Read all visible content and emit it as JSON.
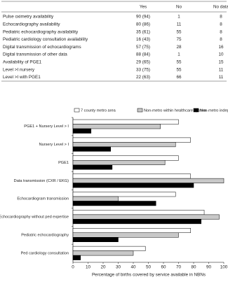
{
  "table": {
    "header": [
      "Yes",
      "No",
      "No data"
    ],
    "rows": [
      [
        "Pulse oximetry availability",
        "90 (94)",
        "1",
        "8"
      ],
      [
        "Echocardiography availability",
        "80 (86)",
        "11",
        "8"
      ],
      [
        "Pediatric echocardiography availability",
        "35 (61)",
        "55",
        "8"
      ],
      [
        "Pediatric cardiology consultation availability",
        "16 (43)",
        "75",
        "8"
      ],
      [
        "Digital transmission of echocardiograms",
        "57 (75)",
        "28",
        "16"
      ],
      [
        "Digital transmission of other data",
        "88 (84)",
        "1",
        "10"
      ],
      [
        "Availability of PGE1",
        "29 (65)",
        "55",
        "15"
      ],
      [
        "Level >I nursery",
        "33 (75)",
        "55",
        "11"
      ],
      [
        "Level >I with PGE1",
        "22 (63)",
        "66",
        "11"
      ]
    ]
  },
  "chart_data": {
    "type": "barh",
    "xlabel": "Percentage of births covered by service available in NBNs",
    "categories": [
      "PGE1 + Nursery Level > I",
      "Nursery Level > I",
      "PGE1",
      "Data transmission (CXR / EKG)",
      "Echocardiogram transmission",
      "Echocardiography without ped expertise",
      "Pediatric echocardiography",
      "Ped cardiology consultation"
    ],
    "series": [
      {
        "name": "7 county metro area",
        "color": "#ffffff",
        "values": [
          70,
          78,
          70,
          78,
          68,
          87,
          78,
          48
        ]
      },
      {
        "name": "Non-metro within healthcare system",
        "color": "#c8c8c8",
        "values": [
          58,
          68,
          61,
          100,
          30,
          97,
          70,
          40
        ]
      },
      {
        "name": "Non-metro independent",
        "color": "#000000",
        "values": [
          12,
          25,
          26,
          80,
          55,
          85,
          30,
          5
        ]
      }
    ],
    "xlim": [
      0,
      100
    ],
    "xticks": [
      0,
      10,
      20,
      30,
      40,
      50,
      60,
      70,
      80,
      90,
      100
    ]
  }
}
